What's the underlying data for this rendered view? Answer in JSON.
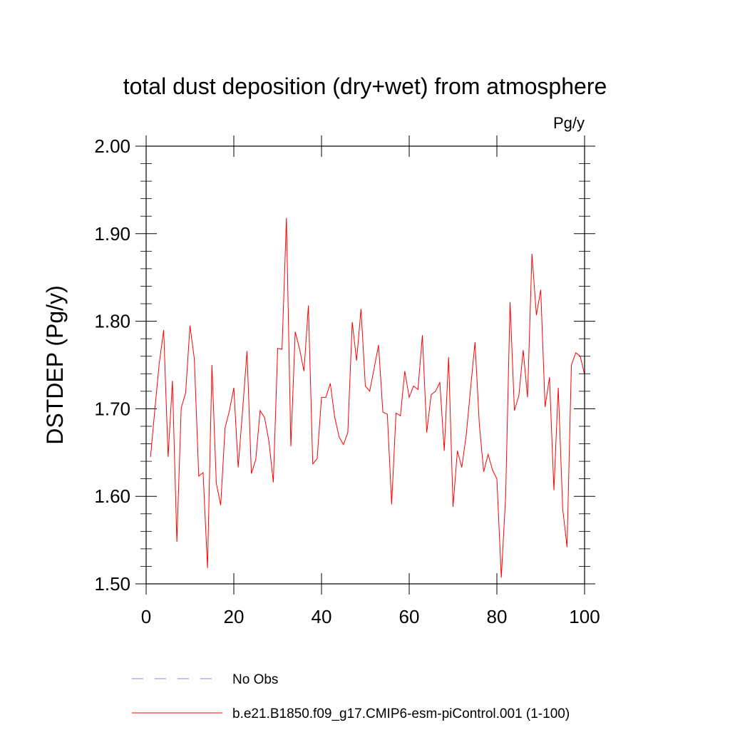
{
  "chart_data": {
    "type": "line",
    "title": "total dust deposition (dry+wet) from atmosphere",
    "units_label": "Pg/y",
    "ylabel": "DSTDEP  (Pg/y)",
    "xlabel": "",
    "xlim": [
      0,
      100
    ],
    "ylim": [
      1.5,
      2.0
    ],
    "x_ticks": [
      0,
      20,
      40,
      60,
      80,
      100
    ],
    "x_tick_labels": [
      "0",
      "20",
      "40",
      "60",
      "80",
      "100"
    ],
    "y_ticks": [
      1.5,
      1.6,
      1.7,
      1.8,
      1.9,
      2.0
    ],
    "y_tick_labels": [
      "1.50",
      "1.60",
      "1.70",
      "1.80",
      "1.90",
      "2.00"
    ],
    "grid": false,
    "legend": [
      {
        "label": "No Obs",
        "style": "dashed",
        "color": "#8f8fd6"
      },
      {
        "label": "b.e21.B1850.f09_g17.CMIP6-esm-piControl.001 (1-100)",
        "style": "solid",
        "color": "#ff0000"
      }
    ],
    "series": [
      {
        "name": "b.e21.B1850.f09_g17.CMIP6-esm-piControl.001 (1-100)",
        "color": "#ff0000",
        "x": [
          1,
          2,
          3,
          4,
          5,
          6,
          7,
          8,
          9,
          10,
          11,
          12,
          13,
          14,
          15,
          16,
          17,
          18,
          19,
          20,
          21,
          22,
          23,
          24,
          25,
          26,
          27,
          28,
          29,
          30,
          31,
          32,
          33,
          34,
          35,
          36,
          37,
          38,
          39,
          40,
          41,
          42,
          43,
          44,
          45,
          46,
          47,
          48,
          49,
          50,
          51,
          52,
          53,
          54,
          55,
          56,
          57,
          58,
          59,
          60,
          61,
          62,
          63,
          64,
          65,
          66,
          67,
          68,
          69,
          70,
          71,
          72,
          73,
          74,
          75,
          76,
          77,
          78,
          79,
          80,
          81,
          82,
          83,
          84,
          85,
          86,
          87,
          88,
          89,
          90,
          91,
          92,
          93,
          94,
          95,
          96,
          97,
          98,
          99,
          100
        ],
        "values": [
          1.645,
          1.7,
          1.752,
          1.79,
          1.645,
          1.732,
          1.548,
          1.701,
          1.718,
          1.795,
          1.757,
          1.623,
          1.627,
          1.518,
          1.75,
          1.615,
          1.59,
          1.678,
          1.698,
          1.724,
          1.633,
          1.698,
          1.766,
          1.626,
          1.642,
          1.698,
          1.69,
          1.663,
          1.616,
          1.769,
          1.768,
          1.918,
          1.657,
          1.788,
          1.768,
          1.743,
          1.818,
          1.637,
          1.643,
          1.713,
          1.713,
          1.729,
          1.691,
          1.668,
          1.659,
          1.673,
          1.799,
          1.755,
          1.814,
          1.726,
          1.72,
          1.746,
          1.773,
          1.696,
          1.694,
          1.591,
          1.695,
          1.692,
          1.743,
          1.713,
          1.726,
          1.722,
          1.784,
          1.673,
          1.716,
          1.72,
          1.73,
          1.652,
          1.759,
          1.588,
          1.652,
          1.633,
          1.67,
          1.723,
          1.776,
          1.682,
          1.628,
          1.648,
          1.63,
          1.62,
          1.507,
          1.6,
          1.822,
          1.698,
          1.715,
          1.767,
          1.713,
          1.877,
          1.807,
          1.836,
          1.702,
          1.736,
          1.607,
          1.724,
          1.586,
          1.542,
          1.75,
          1.764,
          1.76,
          1.739
        ]
      }
    ]
  }
}
